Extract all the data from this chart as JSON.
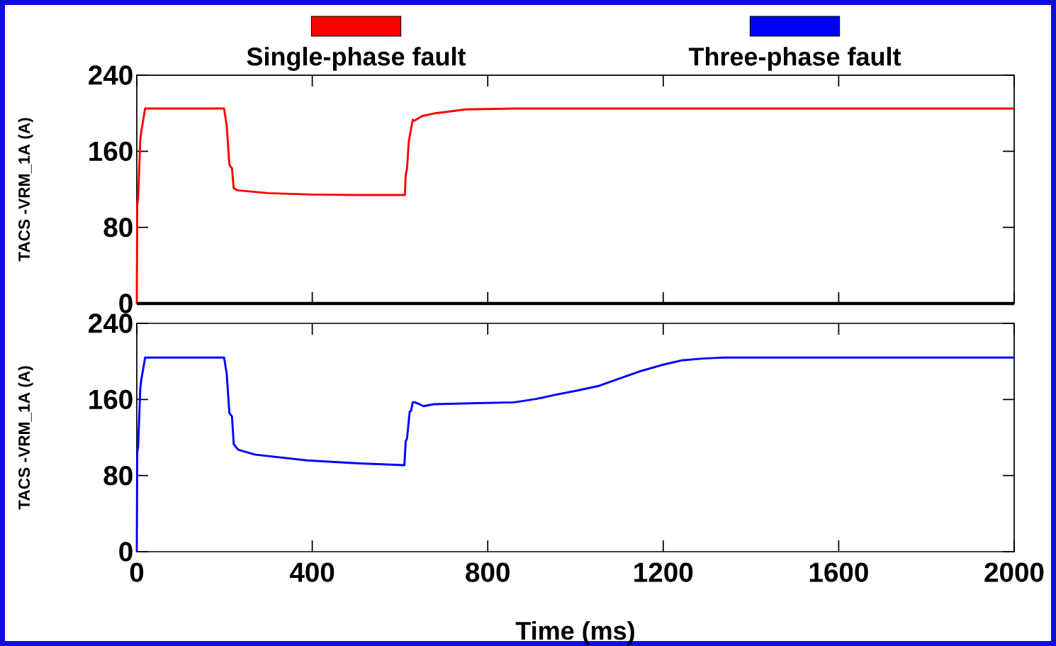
{
  "chart_data": [
    {
      "type": "line",
      "ylabel": "TACS  -VRM_1A  (A)",
      "legend": "top",
      "tick_labels": "y",
      "xlim": [
        0,
        2000
      ],
      "xticks": [
        0,
        400,
        800,
        1200,
        1600,
        2000
      ],
      "ylim": [
        0,
        240
      ],
      "yticks": [
        0,
        80,
        160,
        240
      ],
      "series": [
        {
          "name": "Single-phase fault",
          "color": "#ff0000",
          "x": [
            0,
            1,
            3,
            8,
            10,
            19,
            199,
            205,
            211,
            217,
            221,
            230,
            300,
            400,
            500,
            611,
            613,
            616,
            620,
            623,
            629,
            632,
            650,
            680,
            700,
            750,
            867,
            2000
          ],
          "values": [
            0,
            104,
            110,
            172,
            180,
            205,
            205,
            187,
            146,
            142,
            121,
            119,
            116,
            114.5,
            114,
            114,
            135,
            142,
            170,
            178,
            193,
            192,
            197,
            200,
            201,
            204,
            205,
            205
          ]
        }
      ]
    },
    {
      "type": "line",
      "ylabel": "TACS  -VRM_1A  (A)",
      "xlabel": "Time (ms)",
      "legend": "top",
      "xlim": [
        0,
        2000
      ],
      "xticks": [
        0,
        400,
        800,
        1200,
        1600,
        2000
      ],
      "ylim": [
        0,
        240
      ],
      "yticks": [
        0,
        80,
        160,
        240
      ],
      "series": [
        {
          "name": "Three-phase fault",
          "color": "#0000ff",
          "x": [
            0,
            1,
            3,
            8,
            10,
            19,
            199,
            205,
            211,
            217,
            221,
            226,
            232,
            270,
            388,
            500,
            610,
            613,
            616,
            622,
            625,
            629,
            634,
            645,
            653,
            678,
            760,
            860,
            910,
            955,
            1000,
            1051,
            1100,
            1146,
            1195,
            1241,
            1290,
            1336,
            1400,
            2000
          ],
          "values": [
            0,
            104,
            110,
            172,
            180,
            204,
            204,
            187,
            146,
            142,
            113,
            110,
            107,
            102,
            96,
            93,
            91,
            116,
            119,
            147,
            148,
            157,
            157,
            155,
            153,
            155,
            156,
            157,
            160.5,
            165,
            169,
            174,
            182,
            189.5,
            196,
            201,
            203,
            204,
            204,
            204
          ]
        }
      ]
    }
  ]
}
